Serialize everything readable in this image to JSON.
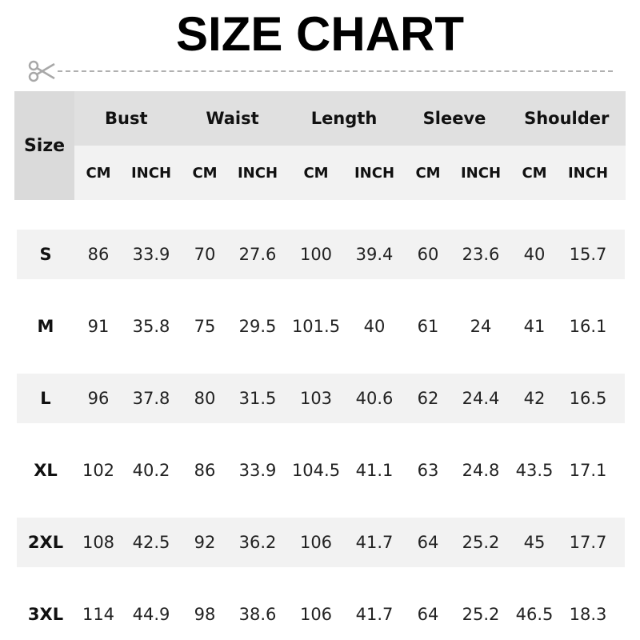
{
  "title": "SIZE CHART",
  "header": {
    "size_label": "Size",
    "groups": [
      "Bust",
      "Waist",
      "Length",
      "Sleeve",
      "Shoulder"
    ],
    "units": [
      "CM",
      "INCH",
      "CM",
      "INCH",
      "CM",
      "INCH",
      "CM",
      "INCH",
      "CM",
      "INCH"
    ]
  },
  "rows": [
    {
      "size": "S",
      "values": [
        "86",
        "33.9",
        "70",
        "27.6",
        "100",
        "39.4",
        "60",
        "23.6",
        "40",
        "15.7"
      ]
    },
    {
      "size": "M",
      "values": [
        "91",
        "35.8",
        "75",
        "29.5",
        "101.5",
        "40",
        "61",
        "24",
        "41",
        "16.1"
      ]
    },
    {
      "size": "L",
      "values": [
        "96",
        "37.8",
        "80",
        "31.5",
        "103",
        "40.6",
        "62",
        "24.4",
        "42",
        "16.5"
      ]
    },
    {
      "size": "XL",
      "values": [
        "102",
        "40.2",
        "86",
        "33.9",
        "104.5",
        "41.1",
        "63",
        "24.8",
        "43.5",
        "17.1"
      ]
    },
    {
      "size": "2XL",
      "values": [
        "108",
        "42.5",
        "92",
        "36.2",
        "106",
        "41.7",
        "64",
        "25.2",
        "45",
        "17.7"
      ]
    },
    {
      "size": "3XL",
      "values": [
        "114",
        "44.9",
        "98",
        "38.6",
        "106",
        "41.7",
        "64",
        "25.2",
        "46.5",
        "18.3"
      ]
    }
  ],
  "colors": {
    "header_size": "#dadada",
    "header_group": "#e0e0e0",
    "header_unit": "#f2f2f2",
    "stripe": "#f2f2f2",
    "dash": "#b0b0b0"
  },
  "icons": {
    "cut_line": "scissors-icon"
  }
}
